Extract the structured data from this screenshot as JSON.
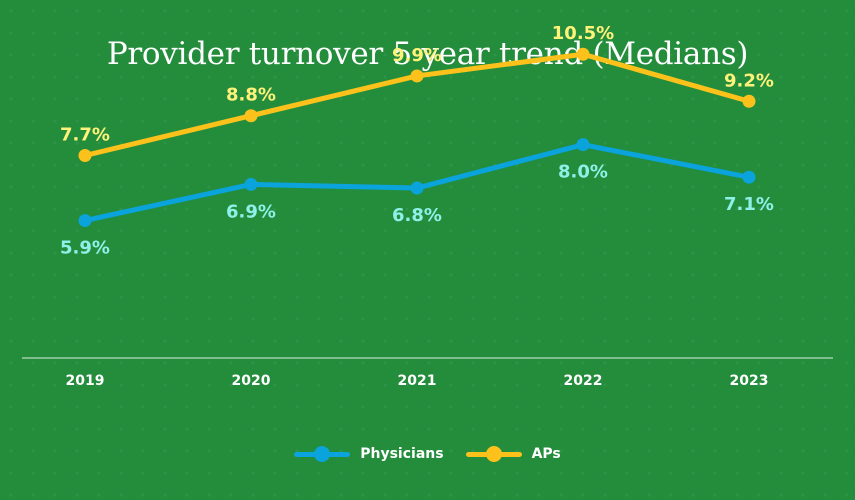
{
  "chart_data": {
    "type": "line",
    "title": "Provider turnover 5 year trend (Medians)",
    "categories": [
      "2019",
      "2020",
      "2021",
      "2022",
      "2023"
    ],
    "series": [
      {
        "name": "Physicians",
        "values": [
          5.9,
          6.9,
          6.8,
          8.0,
          7.1
        ],
        "labels": [
          "5.9%",
          "6.9%",
          "6.8%",
          "8.0%",
          "7.1%"
        ],
        "color": "#0aa3dc",
        "label_color": "#8ff0e8",
        "label_position": "below"
      },
      {
        "name": "APs",
        "values": [
          7.7,
          8.8,
          9.9,
          10.5,
          9.2
        ],
        "labels": [
          "7.7%",
          "8.8%",
          "9.9%",
          "10.5%",
          "9.2%"
        ],
        "color": "#fcc21b",
        "label_color": "#fff27a",
        "label_position": "above"
      }
    ],
    "ylim": [
      2.1,
      12.0
    ],
    "xlabel": "",
    "ylabel": "",
    "grid": false,
    "legend": "bottom-center",
    "background_color": "#238d3c",
    "axis_color": "#b9dcc2"
  }
}
